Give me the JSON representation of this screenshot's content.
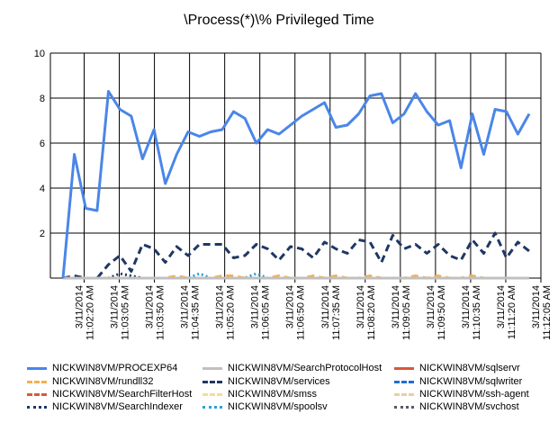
{
  "chart_data": {
    "type": "line",
    "title": "\\Process(*)\\% Privileged Time",
    "xlabel": "",
    "ylabel": "",
    "ylim": [
      0,
      10
    ],
    "yticks": [
      "10",
      "8",
      "6",
      "4",
      "2",
      ""
    ],
    "x_tick_labels": [
      {
        "date": "3/11/2014",
        "time": "11:02:20 AM"
      },
      {
        "date": "3/11/2014",
        "time": "11:03:05 AM"
      },
      {
        "date": "3/11/2014",
        "time": "11:03:50 AM"
      },
      {
        "date": "3/11/2014",
        "time": "11:04:35 AM"
      },
      {
        "date": "3/11/2014",
        "time": "11:05:20 AM"
      },
      {
        "date": "3/11/2014",
        "time": "11:06:05 AM"
      },
      {
        "date": "3/11/2014",
        "time": "11:06:50 AM"
      },
      {
        "date": "3/11/2014",
        "time": "11:07:35 AM"
      },
      {
        "date": "3/11/2014",
        "time": "11:08:20 AM"
      },
      {
        "date": "3/11/2014",
        "time": "11:09:05 AM"
      },
      {
        "date": "3/11/2014",
        "time": "11:09:50 AM"
      },
      {
        "date": "3/11/2014",
        "time": "11:10:35 AM"
      },
      {
        "date": "3/11/2014",
        "time": "11:11:20 AM"
      },
      {
        "date": "3/11/2014",
        "time": "11:12:05 AM"
      }
    ],
    "grid": true,
    "legend_position": "bottom",
    "series": [
      {
        "name": "NICKWIN8VM/PROCEXP64",
        "color": "#4a86e8",
        "style": "solid",
        "values": [
          0,
          5.5,
          3.1,
          3.0,
          8.3,
          7.5,
          7.2,
          5.3,
          6.6,
          4.2,
          5.5,
          6.5,
          6.3,
          6.5,
          6.6,
          7.4,
          7.1,
          6.0,
          6.6,
          6.4,
          6.8,
          7.2,
          7.5,
          7.8,
          6.7,
          6.8,
          7.3,
          8.1,
          8.2,
          6.9,
          7.3,
          8.2,
          7.4,
          6.8,
          7.0,
          4.9,
          7.3,
          5.5,
          7.5,
          7.4,
          6.4,
          7.3
        ]
      },
      {
        "name": "NICKWIN8VM/SearchProtocolHost",
        "color": "#c0c0c0",
        "style": "solid",
        "values": [
          0,
          0,
          0,
          0,
          0,
          0,
          0,
          0,
          0,
          0,
          0,
          0,
          0,
          0,
          0,
          0,
          0,
          0,
          0,
          0,
          0,
          0,
          0,
          0,
          0,
          0,
          0,
          0,
          0,
          0,
          0,
          0,
          0,
          0,
          0,
          0,
          0,
          0,
          0,
          0,
          0,
          0
        ]
      },
      {
        "name": "NICKWIN8VM/sqlservr",
        "color": "#d9583b",
        "style": "solid",
        "values": [
          0,
          0,
          0,
          0,
          0,
          0,
          0,
          0,
          0,
          0,
          0,
          0,
          0,
          0,
          0,
          0,
          0,
          0,
          0,
          0,
          0,
          0,
          0,
          0,
          0,
          0,
          0,
          0,
          0,
          0,
          0,
          0,
          0,
          0,
          0,
          0,
          0,
          0,
          0,
          0,
          0,
          0
        ]
      },
      {
        "name": "NICKWIN8VM/rundll32",
        "color": "#f6b04f",
        "style": "dash",
        "values": [
          0,
          0,
          0,
          0,
          0,
          0,
          0,
          0,
          0,
          0,
          0.1,
          0,
          0,
          0,
          0.1,
          0.1,
          0,
          0,
          0,
          0.1,
          0,
          0,
          0.1,
          0,
          0.1,
          0,
          0,
          0.1,
          0,
          0,
          0,
          0.1,
          0,
          0.1,
          0,
          0,
          0.1,
          0,
          0,
          0,
          0,
          0
        ]
      },
      {
        "name": "NICKWIN8VM/services",
        "color": "#1f3864",
        "style": "dash",
        "values": [
          0,
          0.1,
          0,
          0,
          0.6,
          1.0,
          0.3,
          1.5,
          1.3,
          0.7,
          1.4,
          1.0,
          1.5,
          1.5,
          1.5,
          0.9,
          1.0,
          1.5,
          1.3,
          0.8,
          1.4,
          1.3,
          0.9,
          1.6,
          1.3,
          1.1,
          1.7,
          1.6,
          0.7,
          1.9,
          1.3,
          1.5,
          1.1,
          1.5,
          1.0,
          0.8,
          1.7,
          1.1,
          2.0,
          0.9,
          1.6,
          1.2
        ]
      },
      {
        "name": "NICKWIN8VM/sqlwriter",
        "color": "#1f6fd1",
        "style": "dash",
        "values": [
          0,
          0,
          0,
          0,
          0,
          0,
          0,
          0,
          0,
          0,
          0,
          0,
          0,
          0,
          0,
          0,
          0,
          0,
          0,
          0,
          0,
          0,
          0,
          0,
          0,
          0,
          0,
          0,
          0,
          0,
          0,
          0,
          0,
          0,
          0,
          0,
          0,
          0,
          0,
          0,
          0,
          0
        ]
      },
      {
        "name": "NICKWIN8VM/SearchFilterHost",
        "color": "#d9583b",
        "style": "dash",
        "values": [
          0,
          0,
          0,
          0,
          0,
          0,
          0,
          0,
          0,
          0,
          0,
          0,
          0,
          0,
          0,
          0,
          0,
          0,
          0,
          0,
          0,
          0,
          0,
          0,
          0,
          0,
          0,
          0,
          0,
          0,
          0,
          0,
          0,
          0,
          0,
          0,
          0,
          0,
          0,
          0,
          0,
          0
        ]
      },
      {
        "name": "NICKWIN8VM/smss",
        "color": "#f7dc96",
        "style": "dash",
        "values": [
          0,
          0,
          0,
          0,
          0,
          0,
          0,
          0,
          0,
          0,
          0,
          0,
          0,
          0,
          0,
          0,
          0,
          0,
          0,
          0,
          0,
          0,
          0,
          0,
          0,
          0,
          0,
          0,
          0,
          0,
          0,
          0,
          0,
          0,
          0,
          0,
          0,
          0,
          0,
          0,
          0,
          0
        ]
      },
      {
        "name": "NICKWIN8VM/ssh-agent",
        "color": "#e6cfa8",
        "style": "dash",
        "values": [
          0,
          0,
          0,
          0,
          0,
          0,
          0,
          0,
          0,
          0,
          0,
          0,
          0,
          0,
          0,
          0,
          0,
          0,
          0,
          0,
          0,
          0,
          0,
          0,
          0,
          0,
          0,
          0,
          0,
          0,
          0,
          0,
          0,
          0,
          0,
          0,
          0,
          0,
          0,
          0,
          0,
          0
        ]
      },
      {
        "name": "NICKWIN8VM/SearchIndexer",
        "color": "#1f3864",
        "style": "dot",
        "values": [
          0,
          0,
          0,
          0,
          0,
          0.2,
          0.1,
          0,
          0,
          0,
          0,
          0,
          0,
          0,
          0,
          0,
          0,
          0,
          0,
          0,
          0,
          0,
          0,
          0,
          0,
          0,
          0,
          0,
          0,
          0,
          0,
          0,
          0,
          0,
          0,
          0,
          0,
          0,
          0,
          0,
          0,
          0
        ]
      },
      {
        "name": "NICKWIN8VM/spoolsv",
        "color": "#2e9fd1",
        "style": "dot",
        "values": [
          0,
          0,
          0,
          0,
          0,
          0,
          0,
          0,
          0,
          0,
          0,
          0,
          0.2,
          0,
          0,
          0,
          0,
          0.2,
          0,
          0,
          0,
          0,
          0,
          0,
          0,
          0,
          0,
          0,
          0,
          0,
          0,
          0,
          0,
          0,
          0,
          0,
          0,
          0,
          0,
          0,
          0,
          0
        ]
      },
      {
        "name": "NICKWIN8VM/svchost",
        "color": "#555a60",
        "style": "dot",
        "values": [
          0,
          0,
          0,
          0,
          0,
          0,
          0,
          0,
          0,
          0,
          0,
          0,
          0,
          0,
          0,
          0,
          0,
          0,
          0,
          0,
          0,
          0,
          0,
          0,
          0,
          0,
          0,
          0,
          0,
          0,
          0,
          0,
          0,
          0,
          0,
          0,
          0,
          0,
          0,
          0,
          0,
          0
        ]
      }
    ]
  }
}
